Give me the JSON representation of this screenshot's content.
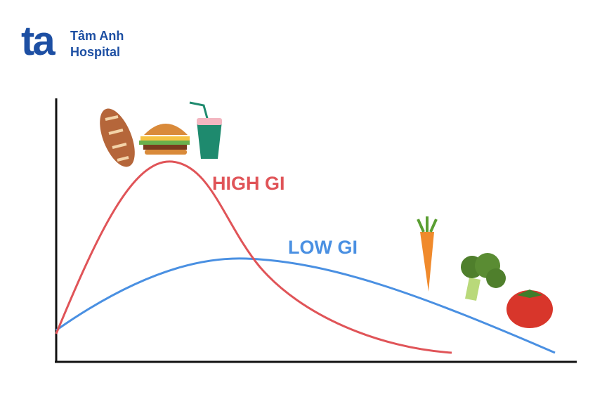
{
  "logo": {
    "mark": "ta",
    "name": "Tâm Anh",
    "subname": "Hospital"
  },
  "labels": {
    "high": "HIGH GI",
    "low": "LOW GI"
  }
}
